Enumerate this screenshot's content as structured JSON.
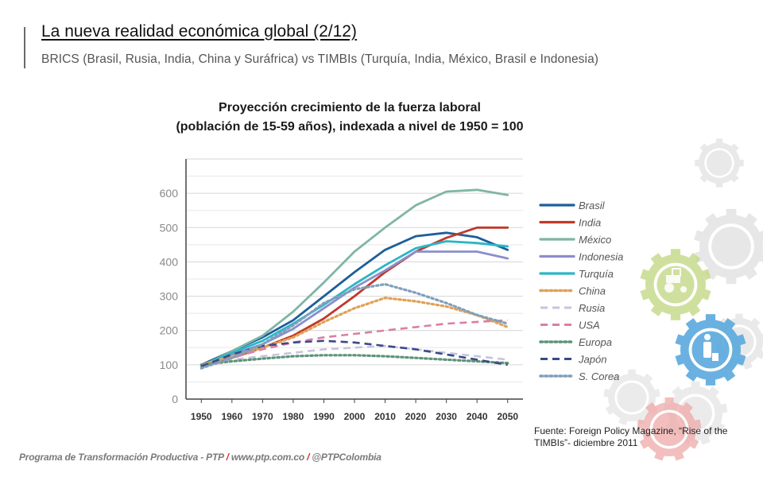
{
  "slide": {
    "title": "La nueva realidad económica global (2/12)",
    "subtitle": "BRICS (Brasil, Rusia, India, China y Suráfrica) vs TIMBIs (Turquía, India, México, Brasil e Indonesia)"
  },
  "chart_data": {
    "type": "line",
    "title_line1": "Proyección crecimiento de la fuerza laboral",
    "title_line2": "(población de 15-59 años), indexada a nivel de 1950 = 100",
    "xlabel": "",
    "ylabel": "",
    "x": [
      1950,
      1960,
      1970,
      1980,
      1990,
      2000,
      2010,
      2020,
      2030,
      2040,
      2050
    ],
    "xlim": [
      1945,
      2055
    ],
    "ylim": [
      0,
      700
    ],
    "yticks": [
      0,
      100,
      200,
      300,
      400,
      500,
      600
    ],
    "grid": true,
    "legend_position": "right",
    "series": [
      {
        "name": "Brasil",
        "color": "#1c5f99",
        "style": "solid",
        "values": [
          100,
          140,
          180,
          230,
          300,
          370,
          435,
          475,
          485,
          472,
          435
        ]
      },
      {
        "name": "India",
        "color": "#c0392b",
        "style": "solid",
        "values": [
          95,
          120,
          150,
          185,
          235,
          300,
          370,
          430,
          470,
          500,
          500
        ]
      },
      {
        "name": "México",
        "color": "#7fb5a6",
        "style": "solid",
        "values": [
          95,
          140,
          185,
          255,
          340,
          430,
          500,
          565,
          605,
          610,
          595
        ]
      },
      {
        "name": "Indonesia",
        "color": "#8a8ecb",
        "style": "solid",
        "values": [
          100,
          130,
          160,
          205,
          265,
          325,
          375,
          430,
          430,
          430,
          410
        ]
      },
      {
        "name": "Turquía",
        "color": "#2bb6c7",
        "style": "solid",
        "values": [
          98,
          135,
          170,
          220,
          275,
          335,
          390,
          440,
          460,
          455,
          445
        ]
      },
      {
        "name": "China",
        "color": "#e0a155",
        "style": "dotted",
        "values": [
          100,
          125,
          150,
          180,
          225,
          265,
          295,
          285,
          270,
          245,
          210
        ]
      },
      {
        "name": "Rusia",
        "color": "#c8c3dc",
        "style": "dashed",
        "values": [
          100,
          115,
          125,
          135,
          145,
          150,
          155,
          145,
          135,
          125,
          115
        ]
      },
      {
        "name": "USA",
        "color": "#d97fa5",
        "style": "dashed",
        "values": [
          100,
          120,
          145,
          165,
          180,
          190,
          200,
          210,
          220,
          225,
          230
        ]
      },
      {
        "name": "Europa",
        "color": "#5e9478",
        "style": "dotted",
        "values": [
          100,
          110,
          118,
          125,
          128,
          128,
          125,
          120,
          115,
          110,
          105
        ]
      },
      {
        "name": "Japón",
        "color": "#3a4a88",
        "style": "dashed",
        "values": [
          95,
          130,
          155,
          165,
          170,
          165,
          155,
          145,
          130,
          115,
          100
        ]
      },
      {
        "name": "S. Corea",
        "color": "#7fa0bc",
        "style": "dotted",
        "values": [
          90,
          120,
          160,
          215,
          280,
          320,
          335,
          310,
          280,
          245,
          220
        ]
      }
    ],
    "source_text": "Fuente: Foreign Policy Magazine, “Rise of the TIMBIs”- diciembre 2011"
  },
  "footer": {
    "program": "Programa de Transformación Productiva - PTP",
    "sep": "/",
    "website": "www.ptp.com.co",
    "handle": "@PTPColombia"
  },
  "decor": {
    "gear_colors": [
      "#c4d986",
      "#5aa9de",
      "#f0a9a9",
      "#d4d4d4"
    ],
    "icons": [
      "tractor-icon",
      "traveler-icon"
    ]
  }
}
